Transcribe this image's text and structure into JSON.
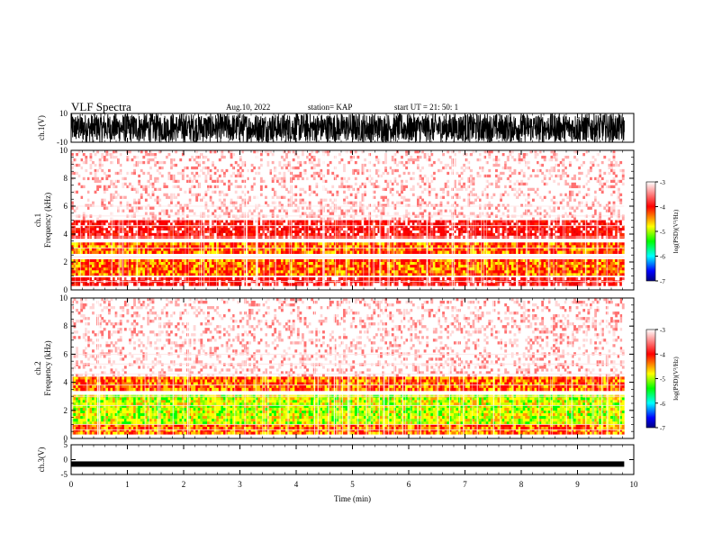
{
  "header": {
    "title": "VLF Spectra",
    "date": "Aug.10, 2022",
    "station": "station= KAP",
    "start": "start UT =  21: 50: 1"
  },
  "colors": {
    "colorbar": [
      "#ffffff",
      "#ff0000",
      "#ffff00",
      "#00ff00",
      "#00ffff",
      "#0000ff",
      "#000080"
    ],
    "waveform": "#000000"
  },
  "chart_data": [
    {
      "id": "ch1-waveform",
      "type": "line",
      "ylabel": "ch.1(V)",
      "ylim": [
        -10,
        10
      ],
      "yticks": [
        "10",
        "-10"
      ],
      "xlim": [
        0,
        10
      ],
      "description_series": "dense broadband waveform filling most of range"
    },
    {
      "id": "ch1-spectrogram",
      "type": "heatmap",
      "ylabel": "ch.1\nFrequency (kHz)",
      "ylabel_lines": [
        "ch.1",
        "Frequency (kHz)"
      ],
      "ylim": [
        0,
        10
      ],
      "yticks": [
        "0",
        "2",
        "4",
        "6",
        "8",
        "10"
      ],
      "xlim": [
        0,
        10
      ],
      "colorbar": {
        "label": "log(PSD)(V²/Hz)",
        "ticks": [
          "-3",
          "-4",
          "-5",
          "-6",
          "-7"
        ],
        "range": [
          -7,
          -3
        ]
      },
      "bands_khz": [
        {
          "from": 0.3,
          "to": 0.9,
          "level": "red"
        },
        {
          "from": 1.0,
          "to": 2.2,
          "level": "red-yellow"
        },
        {
          "from": 2.6,
          "to": 3.4,
          "level": "red-yellow"
        },
        {
          "from": 3.7,
          "to": 5.0,
          "level": "red"
        },
        {
          "from": 5.0,
          "to": 10.0,
          "level": "sparse-red"
        }
      ]
    },
    {
      "id": "ch2-spectrogram",
      "type": "heatmap",
      "ylabel_lines": [
        "ch.2",
        "Frequency (kHz)"
      ],
      "ylim": [
        0,
        10
      ],
      "yticks": [
        "0",
        "2",
        "4",
        "6",
        "8",
        "10"
      ],
      "xlim": [
        0,
        10
      ],
      "colorbar": {
        "label": "log(PSD)(V²/Hz)",
        "ticks": [
          "-3",
          "-4",
          "-5",
          "-6",
          "-7"
        ],
        "range": [
          -7,
          -3
        ]
      },
      "bands_khz": [
        {
          "from": 0.3,
          "to": 1.0,
          "level": "red-yellow"
        },
        {
          "from": 1.0,
          "to": 2.0,
          "level": "yellow-green"
        },
        {
          "from": 2.0,
          "to": 3.1,
          "level": "yellow-green"
        },
        {
          "from": 3.4,
          "to": 4.4,
          "level": "red-yellow"
        },
        {
          "from": 4.4,
          "to": 10.0,
          "level": "sparse-red"
        }
      ]
    },
    {
      "id": "ch3-waveform",
      "type": "line",
      "ylabel": "ch.3(V)",
      "ylim": [
        -5,
        5
      ],
      "yticks": [
        "5",
        "0",
        "-5"
      ],
      "xlim": [
        0,
        10
      ],
      "level_v": -1.5
    }
  ],
  "xaxis": {
    "label": "Time (min)",
    "ticks": [
      "0",
      "1",
      "2",
      "3",
      "4",
      "5",
      "6",
      "7",
      "8",
      "9",
      "10"
    ],
    "range": [
      0,
      10
    ],
    "data_end": 9.83
  }
}
